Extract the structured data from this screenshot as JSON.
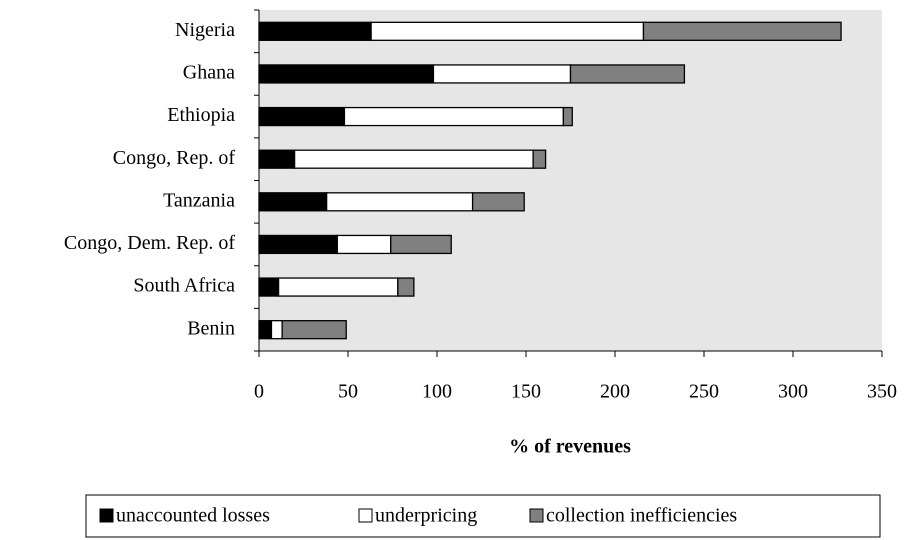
{
  "chart_data": {
    "type": "stacked_barh",
    "categories": [
      "Nigeria",
      "Ghana",
      "Ethiopia",
      "Congo, Rep. of",
      "Tanzania",
      "Congo, Dem. Rep. of",
      "South Africa",
      "Benin"
    ],
    "series": [
      {
        "name": "unaccounted losses",
        "color": "#000000",
        "values": [
          63,
          98,
          48,
          20,
          38,
          44,
          11,
          7
        ]
      },
      {
        "name": "underpricing",
        "color": "#ffffff",
        "values": [
          153,
          77,
          123,
          134,
          82,
          30,
          67,
          6
        ]
      },
      {
        "name": "collection inefficiencies",
        "color": "#808080",
        "values": [
          111,
          64,
          5,
          7,
          29,
          34,
          9,
          36
        ]
      }
    ],
    "x_label": "% of revenues",
    "xlim": [
      0,
      350
    ],
    "xticks": [
      0,
      50,
      100,
      150,
      200,
      250,
      300,
      350
    ],
    "legend": "bottom"
  }
}
